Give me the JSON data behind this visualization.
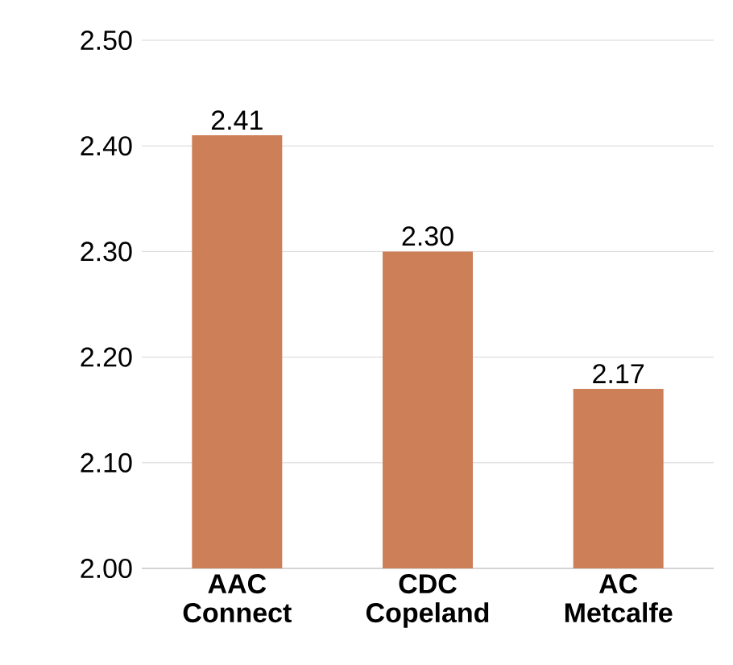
{
  "chart_data": {
    "type": "bar",
    "categories": [
      "AAC Connect",
      "CDC Copeland",
      "AC Metcalfe"
    ],
    "values": [
      2.41,
      2.3,
      2.17
    ],
    "value_labels": [
      "2.41",
      "2.30",
      "2.17"
    ],
    "color": "#cd8058",
    "ylim": [
      2.0,
      2.5
    ],
    "yticks": [
      {
        "value": 2.0,
        "label": "2.00"
      },
      {
        "value": 2.1,
        "label": "2.10"
      },
      {
        "value": 2.2,
        "label": "2.20"
      },
      {
        "value": 2.3,
        "label": "2.30"
      },
      {
        "value": 2.4,
        "label": "2.40"
      },
      {
        "value": 2.5,
        "label": "2.50"
      }
    ],
    "grid": "y"
  }
}
